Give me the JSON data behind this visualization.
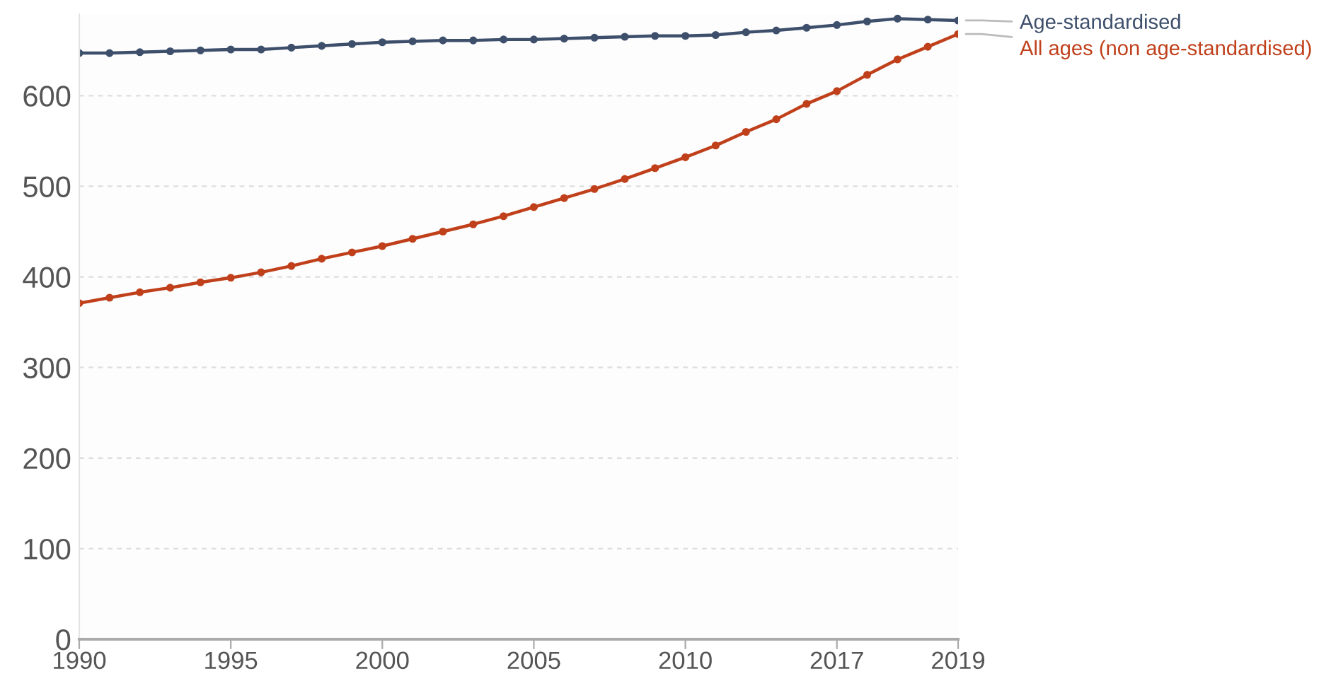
{
  "chart_data": {
    "type": "line",
    "categories": [
      "1990",
      null,
      null,
      null,
      null,
      "1995",
      null,
      null,
      null,
      null,
      "2000",
      null,
      null,
      null,
      null,
      "2005",
      null,
      null,
      null,
      null,
      "2010",
      null,
      null,
      null,
      null,
      "2017",
      null,
      null,
      null,
      "2019"
    ],
    "series": [
      {
        "name": "Age-standardised",
        "color": "#3d4f6b",
        "values": [
          647,
          647,
          648,
          649,
          650,
          651,
          651,
          653,
          655,
          657,
          659,
          660,
          661,
          661,
          662,
          662,
          663,
          664,
          665,
          666,
          666,
          667,
          670,
          672,
          675,
          678,
          682,
          685,
          684,
          683
        ]
      },
      {
        "name": "All ages (non age-standardised)",
        "color": "#c0401b",
        "values": [
          371,
          377,
          383,
          388,
          394,
          399,
          405,
          412,
          420,
          427,
          434,
          442,
          450,
          458,
          467,
          477,
          487,
          497,
          508,
          520,
          532,
          545,
          560,
          574,
          591,
          605,
          623,
          640,
          654,
          668
        ]
      }
    ],
    "ylim": [
      0,
      690
    ],
    "yticks": [
      0,
      100,
      200,
      300,
      400,
      500,
      600
    ],
    "grid": "y",
    "legend": false,
    "marker": "circle",
    "line_style": "solid"
  }
}
